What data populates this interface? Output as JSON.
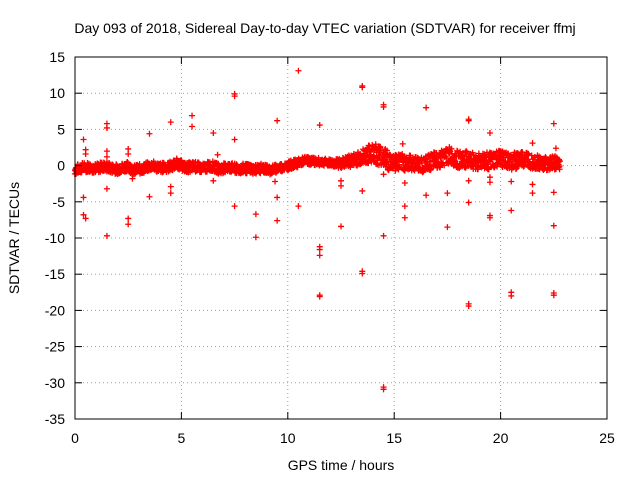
{
  "chart_data": {
    "type": "scatter",
    "title": "Day 093 of 2018, Sidereal Day-to-day VTEC variation (SDTVAR) for receiver ffmj",
    "xlabel": "GPS time / hours",
    "ylabel": "SDTVAR / TECUs",
    "xlim": [
      0,
      25
    ],
    "ylim": [
      -35,
      15
    ],
    "xticks": [
      0,
      5,
      10,
      15,
      20,
      25
    ],
    "yticks": [
      15,
      10,
      5,
      0,
      -5,
      -10,
      -15,
      -20,
      -25,
      -30,
      -35
    ],
    "grid": true,
    "legend": "none",
    "marker": "+",
    "color": "#ff0000",
    "series": [
      {
        "name": "SDTVAR",
        "points": [
          [
            0.4,
            3.6
          ],
          [
            0.5,
            2.2
          ],
          [
            0.5,
            1.6
          ],
          [
            0.4,
            -4.4
          ],
          [
            0.4,
            -6.8
          ],
          [
            0.5,
            -7.3
          ],
          [
            1.5,
            5.8
          ],
          [
            1.5,
            5.2
          ],
          [
            1.5,
            2.0
          ],
          [
            1.5,
            1.2
          ],
          [
            1.5,
            -3.2
          ],
          [
            1.5,
            -9.7
          ],
          [
            2.5,
            2.3
          ],
          [
            2.5,
            1.6
          ],
          [
            2.5,
            -7.3
          ],
          [
            2.5,
            -8.1
          ],
          [
            2.7,
            -1.8
          ],
          [
            3.5,
            4.4
          ],
          [
            3.5,
            -4.3
          ],
          [
            4.5,
            6.0
          ],
          [
            4.5,
            -2.9
          ],
          [
            4.5,
            -3.8
          ],
          [
            5.5,
            6.9
          ],
          [
            5.5,
            5.4
          ],
          [
            6.5,
            4.5
          ],
          [
            6.7,
            1.5
          ],
          [
            6.5,
            -2.1
          ],
          [
            7.5,
            9.9
          ],
          [
            7.5,
            9.6
          ],
          [
            7.5,
            3.6
          ],
          [
            7.5,
            -5.6
          ],
          [
            8.5,
            -6.7
          ],
          [
            8.5,
            -9.9
          ],
          [
            9.5,
            6.2
          ],
          [
            9.4,
            -2.2
          ],
          [
            9.5,
            -4.4
          ],
          [
            9.5,
            -7.6
          ],
          [
            10.5,
            13.1
          ],
          [
            10.5,
            -5.6
          ],
          [
            11.5,
            5.6
          ],
          [
            11.5,
            -11.2
          ],
          [
            11.5,
            -11.6
          ],
          [
            11.5,
            -12.4
          ],
          [
            11.5,
            -17.9
          ],
          [
            11.5,
            -18.1
          ],
          [
            12.5,
            -2.1
          ],
          [
            12.5,
            -2.8
          ],
          [
            12.5,
            -8.4
          ],
          [
            13.5,
            11.0
          ],
          [
            13.5,
            10.8
          ],
          [
            13.5,
            -3.5
          ],
          [
            13.5,
            -14.6
          ],
          [
            13.5,
            -14.9
          ],
          [
            14.5,
            8.4
          ],
          [
            14.5,
            8.1
          ],
          [
            14.5,
            -1.2
          ],
          [
            14.5,
            -9.7
          ],
          [
            14.5,
            -30.6
          ],
          [
            14.5,
            -30.9
          ],
          [
            15.4,
            3.0
          ],
          [
            15.5,
            -2.4
          ],
          [
            15.5,
            -5.6
          ],
          [
            15.5,
            -7.2
          ],
          [
            16.5,
            8.0
          ],
          [
            16.5,
            -4.1
          ],
          [
            17.5,
            -3.8
          ],
          [
            17.5,
            -8.5
          ],
          [
            18.5,
            6.4
          ],
          [
            18.5,
            6.2
          ],
          [
            18.5,
            -2.1
          ],
          [
            18.5,
            -5.1
          ],
          [
            18.5,
            -19.1
          ],
          [
            18.5,
            -19.4
          ],
          [
            19.5,
            4.5
          ],
          [
            19.5,
            -1.6
          ],
          [
            19.5,
            -2.3
          ],
          [
            19.5,
            -6.9
          ],
          [
            19.5,
            -7.2
          ],
          [
            20.5,
            -2.2
          ],
          [
            20.5,
            -6.2
          ],
          [
            20.5,
            -17.5
          ],
          [
            20.5,
            -18.0
          ],
          [
            21.5,
            3.1
          ],
          [
            21.5,
            -2.6
          ],
          [
            21.5,
            -3.8
          ],
          [
            22.5,
            5.8
          ],
          [
            22.6,
            2.4
          ],
          [
            22.5,
            -3.7
          ],
          [
            22.5,
            -8.3
          ],
          [
            22.5,
            -17.6
          ],
          [
            22.5,
            -17.9
          ]
        ],
        "band": [
          [
            0.0,
            -0.6
          ],
          [
            0.3,
            -0.3
          ],
          [
            0.6,
            -0.2
          ],
          [
            1.0,
            -0.4
          ],
          [
            1.3,
            -0.1
          ],
          [
            1.6,
            -0.3
          ],
          [
            2.0,
            -0.5
          ],
          [
            2.4,
            -0.1
          ],
          [
            2.8,
            -0.6
          ],
          [
            3.2,
            -0.4
          ],
          [
            3.6,
            0.0
          ],
          [
            4.0,
            -0.3
          ],
          [
            4.4,
            -0.2
          ],
          [
            4.8,
            0.3
          ],
          [
            5.2,
            -0.3
          ],
          [
            5.6,
            -0.1
          ],
          [
            6.0,
            -0.4
          ],
          [
            6.4,
            0.0
          ],
          [
            6.8,
            -0.5
          ],
          [
            7.2,
            -0.2
          ],
          [
            7.6,
            -0.5
          ],
          [
            8.0,
            -0.4
          ],
          [
            8.4,
            -0.5
          ],
          [
            8.8,
            -0.4
          ],
          [
            9.2,
            -0.6
          ],
          [
            9.6,
            -0.3
          ],
          [
            10.0,
            0.0
          ],
          [
            10.4,
            0.3
          ],
          [
            10.8,
            0.7
          ],
          [
            11.2,
            0.6
          ],
          [
            11.6,
            0.5
          ],
          [
            12.0,
            0.4
          ],
          [
            12.4,
            0.3
          ],
          [
            12.8,
            0.5
          ],
          [
            13.2,
            0.9
          ],
          [
            13.6,
            1.3
          ],
          [
            14.0,
            1.8
          ],
          [
            14.4,
            1.4
          ],
          [
            14.8,
            0.5
          ],
          [
            15.2,
            0.5
          ],
          [
            15.6,
            0.4
          ],
          [
            16.0,
            0.3
          ],
          [
            16.4,
            0.1
          ],
          [
            16.8,
            0.6
          ],
          [
            17.2,
            1.0
          ],
          [
            17.6,
            1.4
          ],
          [
            18.0,
            0.8
          ],
          [
            18.4,
            0.8
          ],
          [
            18.8,
            0.6
          ],
          [
            19.2,
            0.7
          ],
          [
            19.6,
            0.6
          ],
          [
            20.0,
            1.0
          ],
          [
            20.4,
            0.4
          ],
          [
            20.8,
            0.8
          ],
          [
            21.2,
            0.9
          ],
          [
            21.6,
            0.6
          ],
          [
            22.0,
            0.3
          ],
          [
            22.4,
            0.4
          ],
          [
            22.8,
            0.3
          ]
        ],
        "band_spread": [
          [
            0.0,
            0.7
          ],
          [
            2.0,
            0.7
          ],
          [
            5.0,
            0.7
          ],
          [
            8.0,
            0.7
          ],
          [
            10.0,
            0.6
          ],
          [
            12.0,
            0.5
          ],
          [
            13.5,
            1.1
          ],
          [
            14.2,
            1.5
          ],
          [
            15.0,
            1.3
          ],
          [
            16.0,
            1.0
          ],
          [
            17.0,
            1.2
          ],
          [
            18.0,
            1.2
          ],
          [
            19.0,
            1.2
          ],
          [
            20.0,
            1.2
          ],
          [
            21.0,
            1.2
          ],
          [
            22.0,
            1.0
          ],
          [
            22.9,
            0.9
          ]
        ]
      }
    ]
  }
}
